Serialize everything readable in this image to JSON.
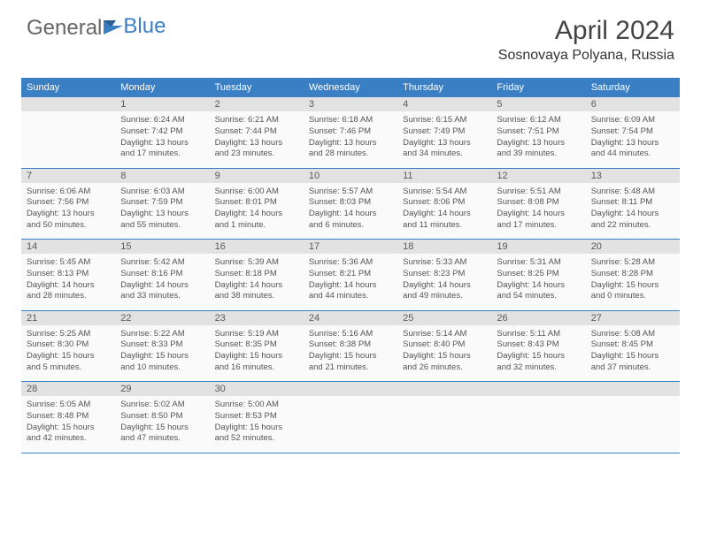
{
  "brand": {
    "part1": "General",
    "part2": "Blue"
  },
  "title": "April 2024",
  "location": "Sosnovaya Polyana, Russia",
  "weekdays": [
    "Sunday",
    "Monday",
    "Tuesday",
    "Wednesday",
    "Thursday",
    "Friday",
    "Saturday"
  ],
  "colors": {
    "header_bg": "#3a7fc4",
    "daynum_bg": "#e2e2e2",
    "cell_bg": "#fafafa",
    "rule": "#3a7fc4"
  },
  "weeks": [
    {
      "nums": [
        "",
        "1",
        "2",
        "3",
        "4",
        "5",
        "6"
      ],
      "cells": [
        null,
        {
          "sunrise": "Sunrise: 6:24 AM",
          "sunset": "Sunset: 7:42 PM",
          "day1": "Daylight: 13 hours",
          "day2": "and 17 minutes."
        },
        {
          "sunrise": "Sunrise: 6:21 AM",
          "sunset": "Sunset: 7:44 PM",
          "day1": "Daylight: 13 hours",
          "day2": "and 23 minutes."
        },
        {
          "sunrise": "Sunrise: 6:18 AM",
          "sunset": "Sunset: 7:46 PM",
          "day1": "Daylight: 13 hours",
          "day2": "and 28 minutes."
        },
        {
          "sunrise": "Sunrise: 6:15 AM",
          "sunset": "Sunset: 7:49 PM",
          "day1": "Daylight: 13 hours",
          "day2": "and 34 minutes."
        },
        {
          "sunrise": "Sunrise: 6:12 AM",
          "sunset": "Sunset: 7:51 PM",
          "day1": "Daylight: 13 hours",
          "day2": "and 39 minutes."
        },
        {
          "sunrise": "Sunrise: 6:09 AM",
          "sunset": "Sunset: 7:54 PM",
          "day1": "Daylight: 13 hours",
          "day2": "and 44 minutes."
        }
      ]
    },
    {
      "nums": [
        "7",
        "8",
        "9",
        "10",
        "11",
        "12",
        "13"
      ],
      "cells": [
        {
          "sunrise": "Sunrise: 6:06 AM",
          "sunset": "Sunset: 7:56 PM",
          "day1": "Daylight: 13 hours",
          "day2": "and 50 minutes."
        },
        {
          "sunrise": "Sunrise: 6:03 AM",
          "sunset": "Sunset: 7:59 PM",
          "day1": "Daylight: 13 hours",
          "day2": "and 55 minutes."
        },
        {
          "sunrise": "Sunrise: 6:00 AM",
          "sunset": "Sunset: 8:01 PM",
          "day1": "Daylight: 14 hours",
          "day2": "and 1 minute."
        },
        {
          "sunrise": "Sunrise: 5:57 AM",
          "sunset": "Sunset: 8:03 PM",
          "day1": "Daylight: 14 hours",
          "day2": "and 6 minutes."
        },
        {
          "sunrise": "Sunrise: 5:54 AM",
          "sunset": "Sunset: 8:06 PM",
          "day1": "Daylight: 14 hours",
          "day2": "and 11 minutes."
        },
        {
          "sunrise": "Sunrise: 5:51 AM",
          "sunset": "Sunset: 8:08 PM",
          "day1": "Daylight: 14 hours",
          "day2": "and 17 minutes."
        },
        {
          "sunrise": "Sunrise: 5:48 AM",
          "sunset": "Sunset: 8:11 PM",
          "day1": "Daylight: 14 hours",
          "day2": "and 22 minutes."
        }
      ]
    },
    {
      "nums": [
        "14",
        "15",
        "16",
        "17",
        "18",
        "19",
        "20"
      ],
      "cells": [
        {
          "sunrise": "Sunrise: 5:45 AM",
          "sunset": "Sunset: 8:13 PM",
          "day1": "Daylight: 14 hours",
          "day2": "and 28 minutes."
        },
        {
          "sunrise": "Sunrise: 5:42 AM",
          "sunset": "Sunset: 8:16 PM",
          "day1": "Daylight: 14 hours",
          "day2": "and 33 minutes."
        },
        {
          "sunrise": "Sunrise: 5:39 AM",
          "sunset": "Sunset: 8:18 PM",
          "day1": "Daylight: 14 hours",
          "day2": "and 38 minutes."
        },
        {
          "sunrise": "Sunrise: 5:36 AM",
          "sunset": "Sunset: 8:21 PM",
          "day1": "Daylight: 14 hours",
          "day2": "and 44 minutes."
        },
        {
          "sunrise": "Sunrise: 5:33 AM",
          "sunset": "Sunset: 8:23 PM",
          "day1": "Daylight: 14 hours",
          "day2": "and 49 minutes."
        },
        {
          "sunrise": "Sunrise: 5:31 AM",
          "sunset": "Sunset: 8:25 PM",
          "day1": "Daylight: 14 hours",
          "day2": "and 54 minutes."
        },
        {
          "sunrise": "Sunrise: 5:28 AM",
          "sunset": "Sunset: 8:28 PM",
          "day1": "Daylight: 15 hours",
          "day2": "and 0 minutes."
        }
      ]
    },
    {
      "nums": [
        "21",
        "22",
        "23",
        "24",
        "25",
        "26",
        "27"
      ],
      "cells": [
        {
          "sunrise": "Sunrise: 5:25 AM",
          "sunset": "Sunset: 8:30 PM",
          "day1": "Daylight: 15 hours",
          "day2": "and 5 minutes."
        },
        {
          "sunrise": "Sunrise: 5:22 AM",
          "sunset": "Sunset: 8:33 PM",
          "day1": "Daylight: 15 hours",
          "day2": "and 10 minutes."
        },
        {
          "sunrise": "Sunrise: 5:19 AM",
          "sunset": "Sunset: 8:35 PM",
          "day1": "Daylight: 15 hours",
          "day2": "and 16 minutes."
        },
        {
          "sunrise": "Sunrise: 5:16 AM",
          "sunset": "Sunset: 8:38 PM",
          "day1": "Daylight: 15 hours",
          "day2": "and 21 minutes."
        },
        {
          "sunrise": "Sunrise: 5:14 AM",
          "sunset": "Sunset: 8:40 PM",
          "day1": "Daylight: 15 hours",
          "day2": "and 26 minutes."
        },
        {
          "sunrise": "Sunrise: 5:11 AM",
          "sunset": "Sunset: 8:43 PM",
          "day1": "Daylight: 15 hours",
          "day2": "and 32 minutes."
        },
        {
          "sunrise": "Sunrise: 5:08 AM",
          "sunset": "Sunset: 8:45 PM",
          "day1": "Daylight: 15 hours",
          "day2": "and 37 minutes."
        }
      ]
    },
    {
      "nums": [
        "28",
        "29",
        "30",
        "",
        "",
        "",
        ""
      ],
      "cells": [
        {
          "sunrise": "Sunrise: 5:05 AM",
          "sunset": "Sunset: 8:48 PM",
          "day1": "Daylight: 15 hours",
          "day2": "and 42 minutes."
        },
        {
          "sunrise": "Sunrise: 5:02 AM",
          "sunset": "Sunset: 8:50 PM",
          "day1": "Daylight: 15 hours",
          "day2": "and 47 minutes."
        },
        {
          "sunrise": "Sunrise: 5:00 AM",
          "sunset": "Sunset: 8:53 PM",
          "day1": "Daylight: 15 hours",
          "day2": "and 52 minutes."
        },
        null,
        null,
        null,
        null
      ]
    }
  ]
}
